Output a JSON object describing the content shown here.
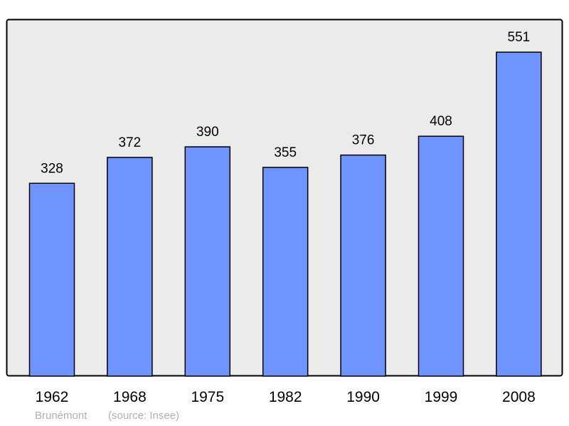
{
  "chart_data": {
    "type": "bar",
    "categories": [
      "1962",
      "1968",
      "1975",
      "1982",
      "1990",
      "1999",
      "2008"
    ],
    "values": [
      328,
      372,
      390,
      355,
      376,
      408,
      551
    ],
    "title": "",
    "xlabel": "",
    "ylabel": "",
    "ylim": [
      0,
      607
    ],
    "grid": false,
    "legend": "none",
    "bar_color": "#7094ff",
    "background_color": "#ebebeb",
    "data_labels": true
  },
  "footer": {
    "place": "Brunémont",
    "source": "(source: Insee)"
  }
}
